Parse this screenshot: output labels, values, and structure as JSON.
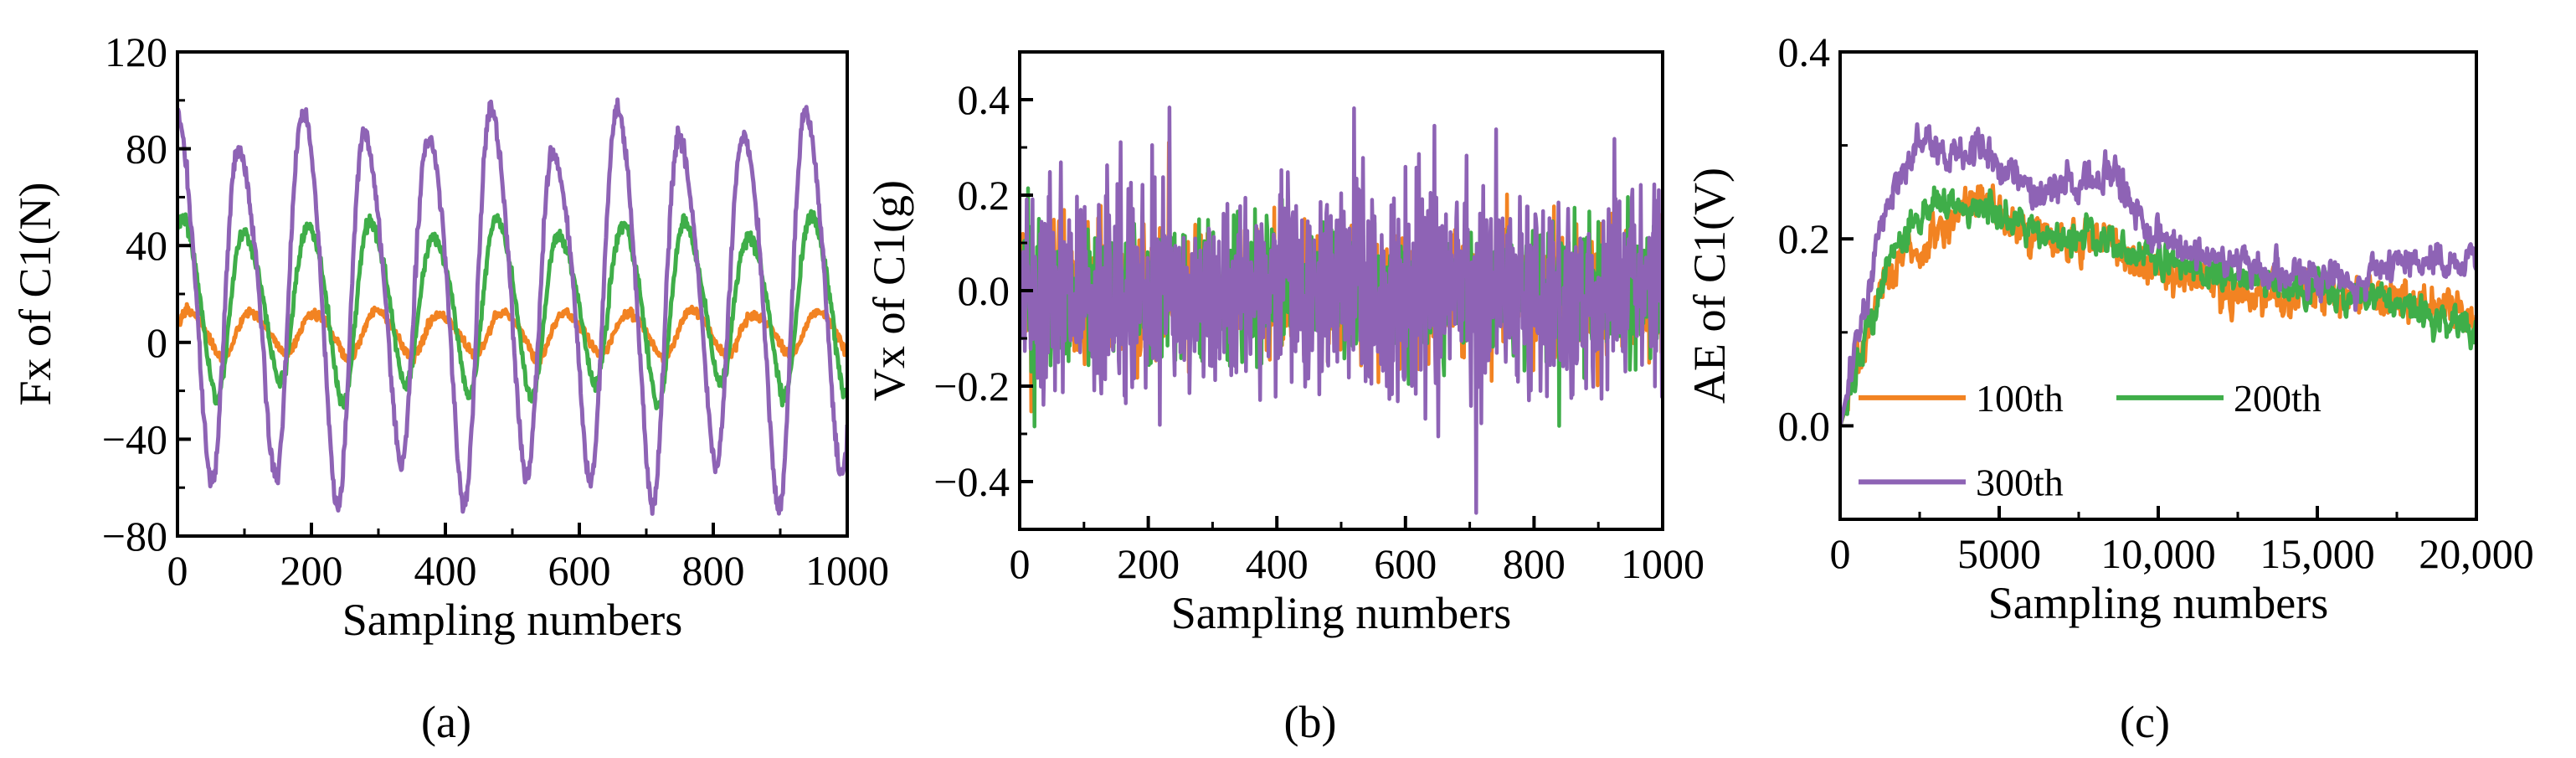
{
  "figure": {
    "panels": [
      {
        "label": "(a)"
      },
      {
        "label": "(b)"
      },
      {
        "label": "(c)"
      }
    ]
  },
  "chart_data": [
    {
      "type": "line",
      "title": "",
      "xlabel": "Sampling numbers",
      "ylabel": "Fx of C1(N)",
      "xlim": [
        0,
        1000
      ],
      "ylim": [
        -80,
        120
      ],
      "x_ticks": [
        0,
        200,
        400,
        600,
        800,
        1000
      ],
      "x_tick_labels": [
        "0",
        "200",
        "400",
        "600",
        "800",
        "1000"
      ],
      "y_ticks": [
        -80,
        -40,
        0,
        40,
        80,
        120
      ],
      "y_tick_labels": [
        "−80",
        "−40",
        "0",
        "40",
        "80",
        "120"
      ],
      "signal": "periodic",
      "period": 94,
      "series": [
        {
          "name": "100th",
          "color": "#f28322",
          "mean": 4,
          "amplitude": 10,
          "noise": 2,
          "phase": 0.3
        },
        {
          "name": "200th",
          "color": "#3fae49",
          "mean": 16,
          "amplitude": 38,
          "noise": 3,
          "phase": 0.9
        },
        {
          "name": "300th",
          "color": "#8e63b5",
          "mean": 20,
          "amplitude": 82,
          "noise": 4,
          "phase": 1.4
        }
      ]
    },
    {
      "type": "line",
      "title": "",
      "xlabel": "Sampling numbers",
      "ylabel": "Vx of C1(g)",
      "xlim": [
        0,
        1000
      ],
      "ylim": [
        -0.5,
        0.5
      ],
      "x_ticks": [
        0,
        200,
        400,
        600,
        800,
        1000
      ],
      "x_tick_labels": [
        "0",
        "200",
        "400",
        "600",
        "800",
        "1000"
      ],
      "y_ticks": [
        -0.4,
        -0.2,
        0.0,
        0.2,
        0.4
      ],
      "y_tick_labels": [
        "−0.4",
        "−0.2",
        "0.0",
        "0.2",
        "0.4"
      ],
      "signal": "noise",
      "series": [
        {
          "name": "100th",
          "color": "#f28322",
          "mean": 0.0,
          "spread": 0.11
        },
        {
          "name": "200th",
          "color": "#3fae49",
          "mean": 0.0,
          "spread": 0.12
        },
        {
          "name": "300th",
          "color": "#8e63b5",
          "mean": 0.0,
          "spread": 0.19
        }
      ]
    },
    {
      "type": "line",
      "title": "",
      "xlabel": "Sampling numbers",
      "ylabel": "AE of C1(V)",
      "xlim": [
        0,
        20000
      ],
      "ylim": [
        -0.1,
        0.4
      ],
      "x_ticks": [
        0,
        5000,
        10000,
        15000,
        20000
      ],
      "x_tick_labels": [
        "0",
        "5000",
        "10,000",
        "15,000",
        "20,000"
      ],
      "y_ticks": [
        0.0,
        0.2,
        0.4
      ],
      "y_tick_labels": [
        "0.0",
        "0.2",
        "0.4"
      ],
      "signal": "envelope",
      "legend": {
        "position": "lower-left",
        "entries": [
          "100th",
          "200th",
          "300th"
        ]
      },
      "series": [
        {
          "name": "100th",
          "color": "#f28322",
          "anchors_x": [
            0,
            1500,
            3000,
            4500,
            6000,
            8000,
            10000,
            12000,
            14000,
            16000,
            18000,
            20000
          ],
          "anchors_y": [
            0.0,
            0.17,
            0.21,
            0.24,
            0.2,
            0.2,
            0.17,
            0.15,
            0.14,
            0.14,
            0.13,
            0.12
          ],
          "noise": 0.018
        },
        {
          "name": "200th",
          "color": "#3fae49",
          "anchors_x": [
            0,
            1500,
            3000,
            4500,
            6000,
            8000,
            10000,
            12000,
            14000,
            16000,
            18000,
            20000
          ],
          "anchors_y": [
            0.0,
            0.18,
            0.24,
            0.23,
            0.21,
            0.2,
            0.18,
            0.16,
            0.15,
            0.14,
            0.12,
            0.1
          ],
          "noise": 0.015
        },
        {
          "name": "300th",
          "color": "#8e63b5",
          "anchors_x": [
            0,
            1500,
            2500,
            3500,
            4500,
            6000,
            8500,
            10500,
            13000,
            16000,
            18000,
            20000
          ],
          "anchors_y": [
            0.0,
            0.24,
            0.3,
            0.29,
            0.3,
            0.25,
            0.26,
            0.19,
            0.17,
            0.15,
            0.18,
            0.18
          ],
          "noise": 0.016
        }
      ]
    }
  ]
}
